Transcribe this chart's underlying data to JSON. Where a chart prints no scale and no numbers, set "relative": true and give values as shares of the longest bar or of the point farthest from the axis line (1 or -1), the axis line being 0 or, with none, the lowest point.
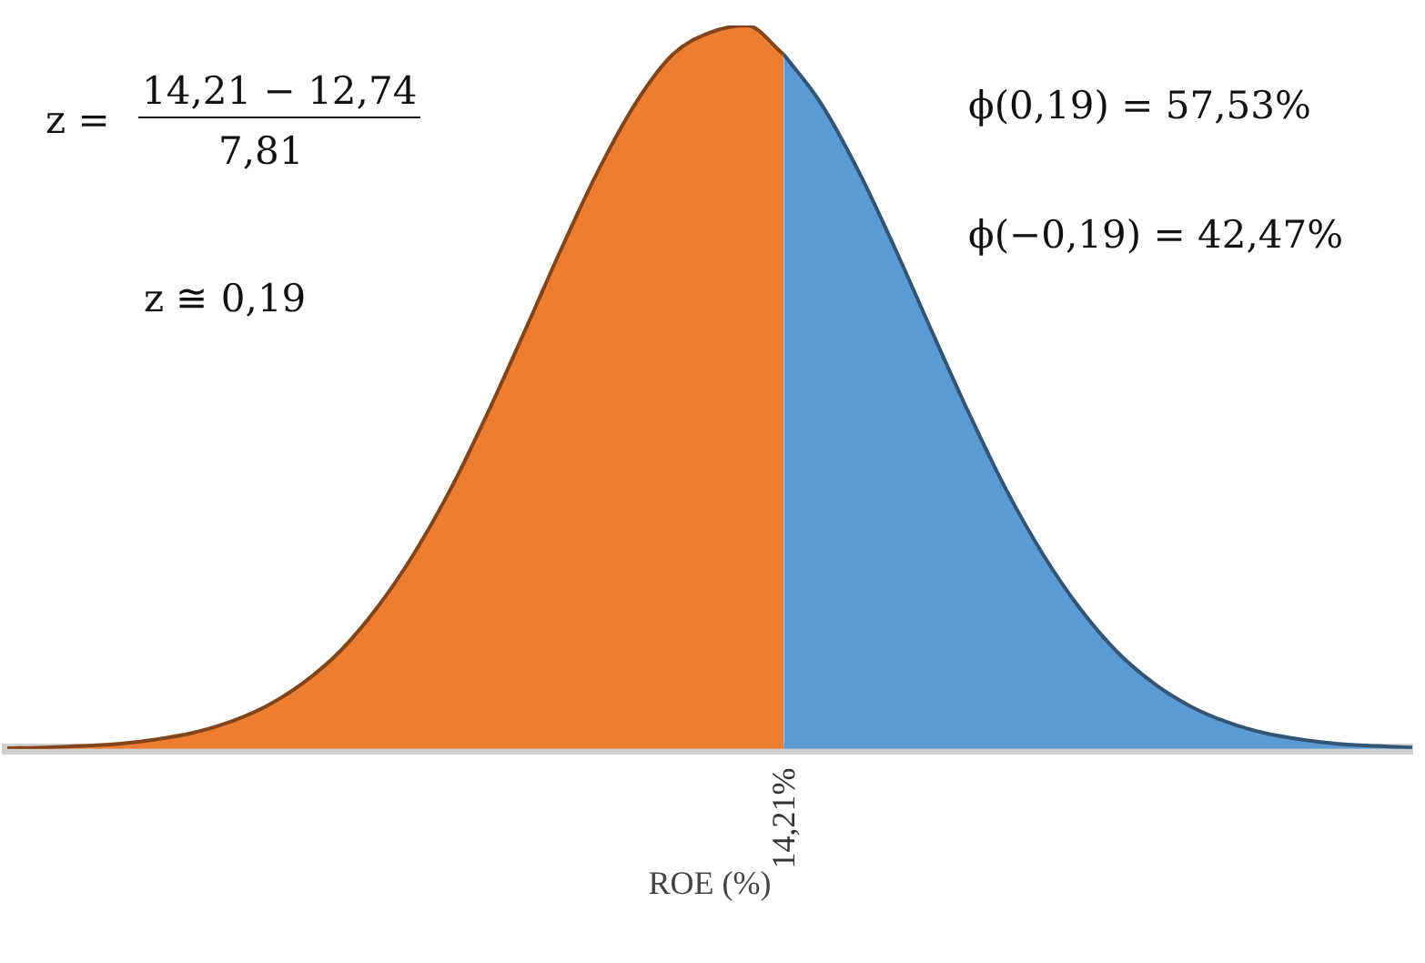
{
  "chart_data": {
    "type": "area",
    "relative": true,
    "xlabel": "ROE (%)",
    "categories": [
      null,
      null,
      null,
      null,
      null,
      null,
      null,
      null,
      null,
      null,
      null,
      null,
      null,
      null,
      null,
      null,
      null,
      null,
      null,
      null,
      null,
      null,
      null,
      null,
      null,
      null,
      null,
      null,
      null,
      null,
      null,
      null,
      null,
      null,
      null,
      null,
      null,
      null,
      null
    ],
    "series": [
      {
        "color": "#ed7d31",
        "values": [
          0.001,
          0.002,
          0.004,
          0.007,
          0.013,
          0.022,
          0.037,
          0.059,
          0.091,
          0.135,
          0.195,
          0.27,
          0.36,
          0.465,
          0.578,
          0.693,
          0.801,
          0.893,
          0.96,
          0.99,
          1,
          0.96,
          null,
          null,
          null,
          null,
          null,
          null,
          null,
          null,
          null,
          null,
          null,
          null,
          null,
          null,
          null,
          null,
          null
        ]
      },
      {
        "color": "#5b9bd5",
        "values": [
          null,
          null,
          null,
          null,
          null,
          null,
          null,
          null,
          null,
          null,
          null,
          null,
          null,
          null,
          null,
          null,
          null,
          null,
          null,
          null,
          null,
          0.96,
          0.893,
          0.801,
          0.693,
          0.578,
          0.465,
          0.36,
          0.27,
          0.195,
          0.135,
          0.091,
          0.059,
          0.037,
          0.022,
          0.013,
          0.007,
          0.004,
          0.002
        ]
      }
    ],
    "annotations": [
      "z =",
      "14,21 − 12,74",
      "7,81",
      "z ≅ 0,19",
      "ϕ(0,19) = 57,53%",
      "ϕ(−0,19) = 42,47%",
      "14,21%"
    ],
    "grid": false,
    "legend": false
  }
}
